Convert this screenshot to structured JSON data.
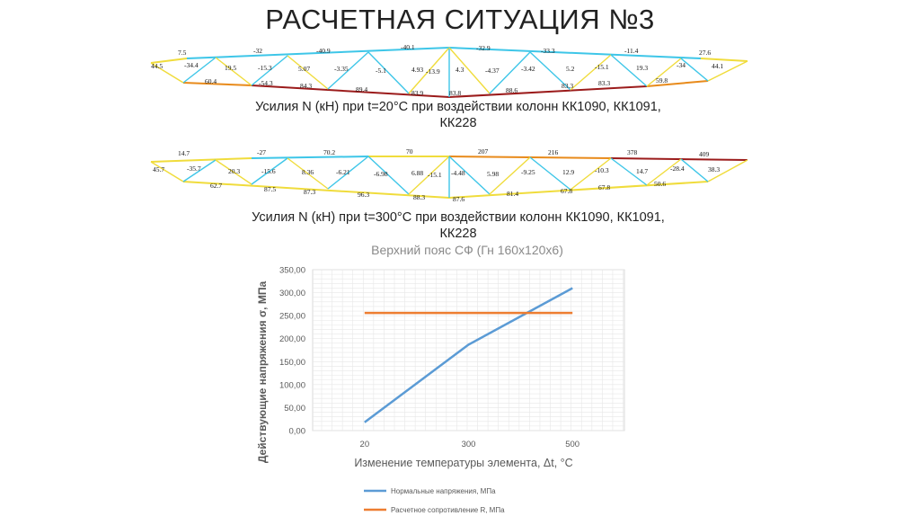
{
  "slide": {
    "title": "РАСЧЕТНАЯ СИТУАЦИЯ №3"
  },
  "truss_top": {
    "caption_line1": "Усилия N (кН) при t=20°С при воздействии колонн КК1090, КК1091,",
    "caption_line2": "КК228",
    "top_chord_labels": [
      "7.5",
      "-32",
      "-40.9",
      "-40.1",
      "-32.9",
      "-33.3",
      "-11.4",
      "27.6"
    ],
    "web_labels": [
      "44.5",
      "-34.4",
      "19.5",
      "-15.3",
      "5.07",
      "-3.35",
      "-5.1",
      "4.93",
      "-13.9",
      "4.3",
      "-4.37",
      "-3.42",
      "5.2",
      "-15.1",
      "19.3",
      "-34",
      "44.1"
    ],
    "bottom_chord_labels": [
      "60.4",
      "-54.3",
      "84.3",
      "89.4",
      "83.9",
      "83.8",
      "88.6",
      "83.3",
      "83.3",
      "59.8"
    ]
  },
  "truss_bottom": {
    "caption_line1": "Усилия N (кН) при t=300°С при воздействии колонн КК1090, КК1091,",
    "caption_line2": "КК228",
    "top_chord_labels": [
      "14.7",
      "-27",
      "70.2",
      "70",
      "207",
      "216",
      "378",
      "409"
    ],
    "web_labels": [
      "45.7",
      "-35.7",
      "20.3",
      "-15.6",
      "8.36",
      "-6.21",
      "-6.98",
      "6.88",
      "-15.1",
      "-4.48",
      "5.98",
      "-9.25",
      "12.9",
      "-10.3",
      "14.7",
      "-28.4",
      "38.3"
    ],
    "bottom_chord_labels": [
      "62.7",
      "87.5",
      "87.3",
      "96.3",
      "88.3",
      "87.6",
      "81.4",
      "67.8",
      "67.8",
      "50.6"
    ]
  },
  "colors": {
    "compression": "#3ec6e8",
    "tension_low": "#f0dc3c",
    "tension_mid": "#e88a1a",
    "tension_high": "#9b1b1b",
    "series_stress": "#5b9bd5",
    "series_resistance": "#ed7d31"
  },
  "chart_data": {
    "type": "line",
    "title": "Верхний пояс СФ (Гн 160х120х6)",
    "xlabel": "Изменение температуры элемента, Δt, °С",
    "ylabel": "Действующие напряжения σ, МПа",
    "categories": [
      "20",
      "300",
      "500"
    ],
    "ylim": [
      0,
      350
    ],
    "ytick_labels": [
      "0,00",
      "50,00",
      "100,00",
      "150,00",
      "200,00",
      "250,00",
      "300,00",
      "350,00"
    ],
    "grid": true,
    "legend_placement": "bottom",
    "series": [
      {
        "name": "Нормальные напряжения, МПа",
        "values": [
          18,
          187,
          310
        ]
      },
      {
        "name": "Расчетное сопротивление R, МПа",
        "values": [
          256,
          256,
          256
        ]
      }
    ]
  }
}
